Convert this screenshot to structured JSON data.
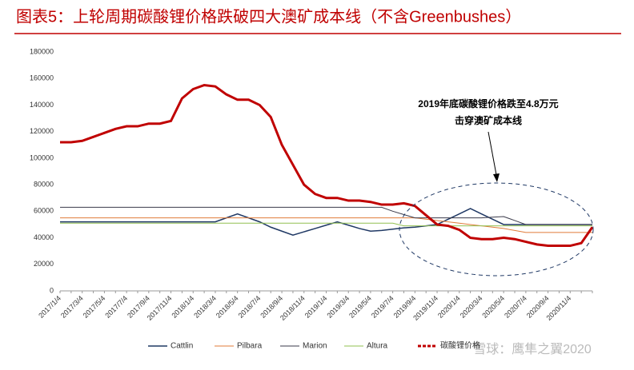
{
  "chart_data": {
    "type": "line",
    "title": "图表5：上轮周期碳酸锂价格跌破四大澳矿成本线（不含Greenbushes）",
    "categories": [
      "2017/1/4",
      null,
      "2017/3/4",
      null,
      "2017/5/4",
      null,
      "2017/7/4",
      null,
      "2017/9/4",
      null,
      "2017/11/4",
      null,
      "2018/1/4",
      null,
      "2018/3/4",
      null,
      "2018/5/4",
      null,
      "2018/7/4",
      null,
      "2018/9/4",
      null,
      "2018/11/4",
      null,
      "2019/1/4",
      null,
      "2019/3/4",
      null,
      "2019/5/4",
      null,
      "2019/7/4",
      null,
      "2019/9/4",
      null,
      "2019/11/4",
      null,
      "2020/1/4",
      null,
      "2020/3/4",
      null,
      "2020/5/4",
      null,
      "2020/7/4",
      null,
      "2020/9/4",
      null,
      "2020/11/4",
      null,
      null
    ],
    "series": [
      {
        "name": "Cattlin",
        "color": "#1f3864",
        "width": 1.5,
        "values": [
          52000,
          52000,
          52000,
          52000,
          52000,
          52000,
          52000,
          52000,
          52000,
          52000,
          52000,
          52000,
          52000,
          52000,
          52000,
          55000,
          58000,
          55000,
          52000,
          48000,
          45000,
          42000,
          44500,
          47000,
          49500,
          52000,
          49500,
          47000,
          45000,
          45500,
          46500,
          47500,
          48000,
          49000,
          50000,
          54000,
          58000,
          62000,
          58000,
          54000,
          50000,
          50000,
          50000,
          50000,
          50000,
          50000,
          50000,
          50000,
          50000
        ]
      },
      {
        "name": "Pilbara",
        "color": "#e07b39",
        "width": 1,
        "values": [
          55000,
          55000,
          55000,
          55000,
          55000,
          55000,
          55000,
          55000,
          55000,
          55000,
          55000,
          55000,
          55000,
          55000,
          55000,
          55000,
          55000,
          55000,
          55000,
          55000,
          55000,
          55000,
          55000,
          55000,
          55000,
          55000,
          55000,
          55000,
          55000,
          55000,
          55000,
          55000,
          55000,
          54000,
          53000,
          52000,
          51000,
          50000,
          49000,
          48000,
          47000,
          45500,
          44000,
          44000,
          44000,
          44000,
          44000,
          44000,
          44000
        ]
      },
      {
        "name": "Marion",
        "color": "#3a3a4a",
        "width": 1,
        "values": [
          63000,
          63000,
          63000,
          63000,
          63000,
          63000,
          63000,
          63000,
          63000,
          63000,
          63000,
          63000,
          63000,
          63000,
          63000,
          63000,
          63000,
          63000,
          63000,
          63000,
          63000,
          63000,
          63000,
          63000,
          63000,
          63000,
          63000,
          63000,
          63000,
          63000,
          60000,
          57500,
          55000,
          55000,
          55000,
          55000,
          55000,
          55000,
          55000,
          55500,
          56000,
          53000,
          50000,
          50000,
          50000,
          50000,
          50000,
          50000,
          50000
        ]
      },
      {
        "name": "Altura",
        "color": "#92c050",
        "width": 1,
        "values": [
          51000,
          51000,
          51000,
          51000,
          51000,
          51000,
          51000,
          51000,
          51000,
          51000,
          51000,
          51000,
          51000,
          51000,
          51000,
          51000,
          51000,
          51000,
          51000,
          51000,
          51000,
          51000,
          51000,
          51000,
          51000,
          51000,
          51000,
          51000,
          51000,
          51000,
          51000,
          49000,
          49000,
          49000,
          49000,
          49000,
          49000,
          49000,
          49000,
          49000,
          49000,
          49000,
          49000,
          49000,
          49000,
          49000,
          49000,
          49000,
          49000
        ]
      },
      {
        "name": "碳酸锂价格",
        "color": "#c00000",
        "width": 3,
        "values": [
          112000,
          112000,
          113000,
          116000,
          119000,
          122000,
          124000,
          124000,
          126000,
          126000,
          128000,
          145000,
          152000,
          155000,
          154000,
          148000,
          144000,
          144000,
          140000,
          131000,
          110000,
          95000,
          80000,
          73000,
          70000,
          70000,
          68000,
          68000,
          67000,
          65000,
          65000,
          66000,
          64000,
          57000,
          50000,
          49000,
          46000,
          40000,
          39000,
          39000,
          40000,
          39000,
          37000,
          35000,
          34000,
          34000,
          34000,
          36000,
          48000
        ]
      }
    ],
    "ylim": [
      0,
      180000
    ],
    "yticks": [
      0,
      20000,
      40000,
      60000,
      80000,
      100000,
      120000,
      140000,
      160000,
      180000
    ],
    "annotations": [
      "2019年底碳酸锂价格跌至4.8万元",
      "击穿澳矿成本线"
    ],
    "watermark": "雪球：鹰隼之翼2020"
  }
}
